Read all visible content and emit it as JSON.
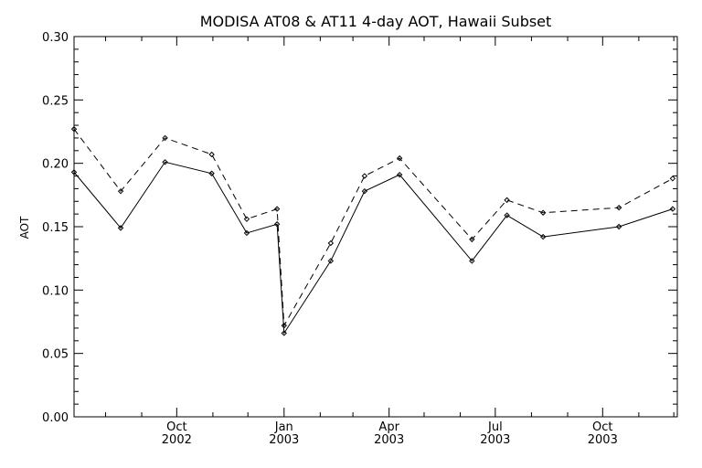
{
  "chart_data": {
    "type": "line",
    "title": "MODISA AT08 & AT11 4-day AOT, Hawaii Subset",
    "xlabel": "",
    "ylabel": "AOT",
    "ylim": [
      0.0,
      0.3
    ],
    "xlim": [
      "2002-07-05",
      "2003-12-04"
    ],
    "grid": false,
    "y_ticks": [
      "0.00",
      "0.05",
      "0.10",
      "0.15",
      "0.20",
      "0.25",
      "0.30"
    ],
    "x_ticks": [
      {
        "date": "2002-10-01",
        "month": "Oct",
        "year": "2002"
      },
      {
        "date": "2003-01-01",
        "month": "Jan",
        "year": "2003"
      },
      {
        "date": "2003-04-01",
        "month": "Apr",
        "year": "2003"
      },
      {
        "date": "2003-07-01",
        "month": "Jul",
        "year": "2003"
      },
      {
        "date": "2003-10-01",
        "month": "Oct",
        "year": "2003"
      }
    ],
    "series": [
      {
        "line_style": "solid",
        "color": "#000000",
        "points": [
          {
            "x": "2002-07-05",
            "y": 0.193
          },
          {
            "x": "2002-08-14",
            "y": 0.149
          },
          {
            "x": "2002-09-21",
            "y": 0.201
          },
          {
            "x": "2002-10-31",
            "y": 0.192
          },
          {
            "x": "2002-11-30",
            "y": 0.145
          },
          {
            "x": "2002-12-26",
            "y": 0.152
          },
          {
            "x": "2003-01-01",
            "y": 0.066
          },
          {
            "x": "2003-02-10",
            "y": 0.123
          },
          {
            "x": "2003-03-11",
            "y": 0.178
          },
          {
            "x": "2003-04-10",
            "y": 0.191
          },
          {
            "x": "2003-06-11",
            "y": 0.123
          },
          {
            "x": "2003-07-11",
            "y": 0.159
          },
          {
            "x": "2003-08-11",
            "y": 0.142
          },
          {
            "x": "2003-10-15",
            "y": 0.15
          },
          {
            "x": "2003-11-30",
            "y": 0.164
          }
        ]
      },
      {
        "line_style": "dashed",
        "color": "#000000",
        "points": [
          {
            "x": "2002-07-05",
            "y": 0.227
          },
          {
            "x": "2002-08-14",
            "y": 0.178
          },
          {
            "x": "2002-09-21",
            "y": 0.22
          },
          {
            "x": "2002-10-31",
            "y": 0.207
          },
          {
            "x": "2002-11-30",
            "y": 0.156
          },
          {
            "x": "2002-12-26",
            "y": 0.164
          },
          {
            "x": "2003-01-01",
            "y": 0.072
          },
          {
            "x": "2003-02-10",
            "y": 0.137
          },
          {
            "x": "2003-03-11",
            "y": 0.19
          },
          {
            "x": "2003-04-10",
            "y": 0.204
          },
          {
            "x": "2003-06-11",
            "y": 0.14
          },
          {
            "x": "2003-07-11",
            "y": 0.171
          },
          {
            "x": "2003-08-11",
            "y": 0.161
          },
          {
            "x": "2003-10-15",
            "y": 0.165
          },
          {
            "x": "2003-11-30",
            "y": 0.188
          }
        ]
      }
    ]
  }
}
